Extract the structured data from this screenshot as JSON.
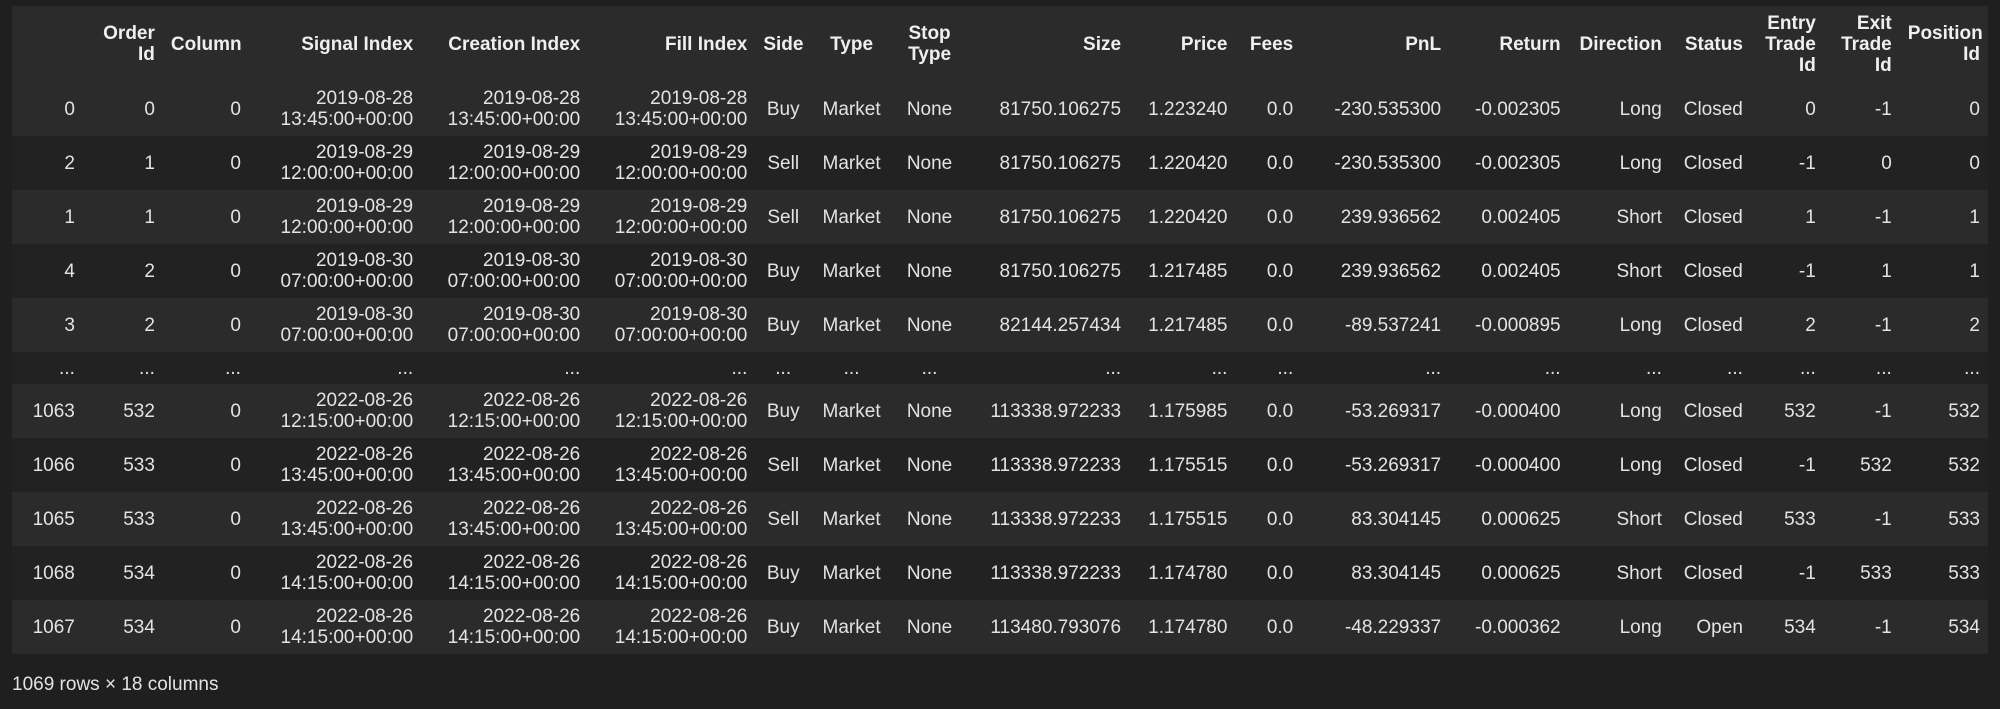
{
  "table": {
    "columns": [
      {
        "key": "index",
        "label": ""
      },
      {
        "key": "order_id",
        "label": "Order Id"
      },
      {
        "key": "column",
        "label": "Column"
      },
      {
        "key": "signal_index",
        "label": "Signal Index"
      },
      {
        "key": "creation_index",
        "label": "Creation Index"
      },
      {
        "key": "fill_index",
        "label": "Fill Index"
      },
      {
        "key": "side",
        "label": "Side"
      },
      {
        "key": "type",
        "label": "Type"
      },
      {
        "key": "stop_type",
        "label": "Stop Type"
      },
      {
        "key": "size",
        "label": "Size"
      },
      {
        "key": "price",
        "label": "Price"
      },
      {
        "key": "fees",
        "label": "Fees"
      },
      {
        "key": "pnl",
        "label": "PnL"
      },
      {
        "key": "return",
        "label": "Return"
      },
      {
        "key": "direction",
        "label": "Direction"
      },
      {
        "key": "status",
        "label": "Status"
      },
      {
        "key": "entry_trade_id",
        "label": "Entry Trade Id"
      },
      {
        "key": "exit_trade_id",
        "label": "Exit Trade Id"
      },
      {
        "key": "position_id",
        "label": "Position Id"
      }
    ],
    "rows": [
      [
        "0",
        "0",
        "0",
        "2019-08-28\n13:45:00+00:00",
        "2019-08-28\n13:45:00+00:00",
        "2019-08-28\n13:45:00+00:00",
        "Buy",
        "Market",
        "None",
        "81750.106275",
        "1.223240",
        "0.0",
        "-230.535300",
        "-0.002305",
        "Long",
        "Closed",
        "0",
        "-1",
        "0"
      ],
      [
        "2",
        "1",
        "0",
        "2019-08-29\n12:00:00+00:00",
        "2019-08-29\n12:00:00+00:00",
        "2019-08-29\n12:00:00+00:00",
        "Sell",
        "Market",
        "None",
        "81750.106275",
        "1.220420",
        "0.0",
        "-230.535300",
        "-0.002305",
        "Long",
        "Closed",
        "-1",
        "0",
        "0"
      ],
      [
        "1",
        "1",
        "0",
        "2019-08-29\n12:00:00+00:00",
        "2019-08-29\n12:00:00+00:00",
        "2019-08-29\n12:00:00+00:00",
        "Sell",
        "Market",
        "None",
        "81750.106275",
        "1.220420",
        "0.0",
        "239.936562",
        "0.002405",
        "Short",
        "Closed",
        "1",
        "-1",
        "1"
      ],
      [
        "4",
        "2",
        "0",
        "2019-08-30\n07:00:00+00:00",
        "2019-08-30\n07:00:00+00:00",
        "2019-08-30\n07:00:00+00:00",
        "Buy",
        "Market",
        "None",
        "81750.106275",
        "1.217485",
        "0.0",
        "239.936562",
        "0.002405",
        "Short",
        "Closed",
        "-1",
        "1",
        "1"
      ],
      [
        "3",
        "2",
        "0",
        "2019-08-30\n07:00:00+00:00",
        "2019-08-30\n07:00:00+00:00",
        "2019-08-30\n07:00:00+00:00",
        "Buy",
        "Market",
        "None",
        "82144.257434",
        "1.217485",
        "0.0",
        "-89.537241",
        "-0.000895",
        "Long",
        "Closed",
        "2",
        "-1",
        "2"
      ],
      [
        "...",
        "...",
        "...",
        "...",
        "...",
        "...",
        "...",
        "...",
        "...",
        "...",
        "...",
        "...",
        "...",
        "...",
        "...",
        "...",
        "...",
        "...",
        "..."
      ],
      [
        "1063",
        "532",
        "0",
        "2022-08-26\n12:15:00+00:00",
        "2022-08-26\n12:15:00+00:00",
        "2022-08-26\n12:15:00+00:00",
        "Buy",
        "Market",
        "None",
        "113338.972233",
        "1.175985",
        "0.0",
        "-53.269317",
        "-0.000400",
        "Long",
        "Closed",
        "532",
        "-1",
        "532"
      ],
      [
        "1066",
        "533",
        "0",
        "2022-08-26\n13:45:00+00:00",
        "2022-08-26\n13:45:00+00:00",
        "2022-08-26\n13:45:00+00:00",
        "Sell",
        "Market",
        "None",
        "113338.972233",
        "1.175515",
        "0.0",
        "-53.269317",
        "-0.000400",
        "Long",
        "Closed",
        "-1",
        "532",
        "532"
      ],
      [
        "1065",
        "533",
        "0",
        "2022-08-26\n13:45:00+00:00",
        "2022-08-26\n13:45:00+00:00",
        "2022-08-26\n13:45:00+00:00",
        "Sell",
        "Market",
        "None",
        "113338.972233",
        "1.175515",
        "0.0",
        "83.304145",
        "0.000625",
        "Short",
        "Closed",
        "533",
        "-1",
        "533"
      ],
      [
        "1068",
        "534",
        "0",
        "2022-08-26\n14:15:00+00:00",
        "2022-08-26\n14:15:00+00:00",
        "2022-08-26\n14:15:00+00:00",
        "Buy",
        "Market",
        "None",
        "113338.972233",
        "1.174780",
        "0.0",
        "83.304145",
        "0.000625",
        "Short",
        "Closed",
        "-1",
        "533",
        "533"
      ],
      [
        "1067",
        "534",
        "0",
        "2022-08-26\n14:15:00+00:00",
        "2022-08-26\n14:15:00+00:00",
        "2022-08-26\n14:15:00+00:00",
        "Buy",
        "Market",
        "None",
        "113480.793076",
        "1.174780",
        "0.0",
        "-48.229337",
        "-0.000362",
        "Long",
        "Open",
        "534",
        "-1",
        "534"
      ]
    ],
    "footer": "1069 rows × 18 columns"
  }
}
